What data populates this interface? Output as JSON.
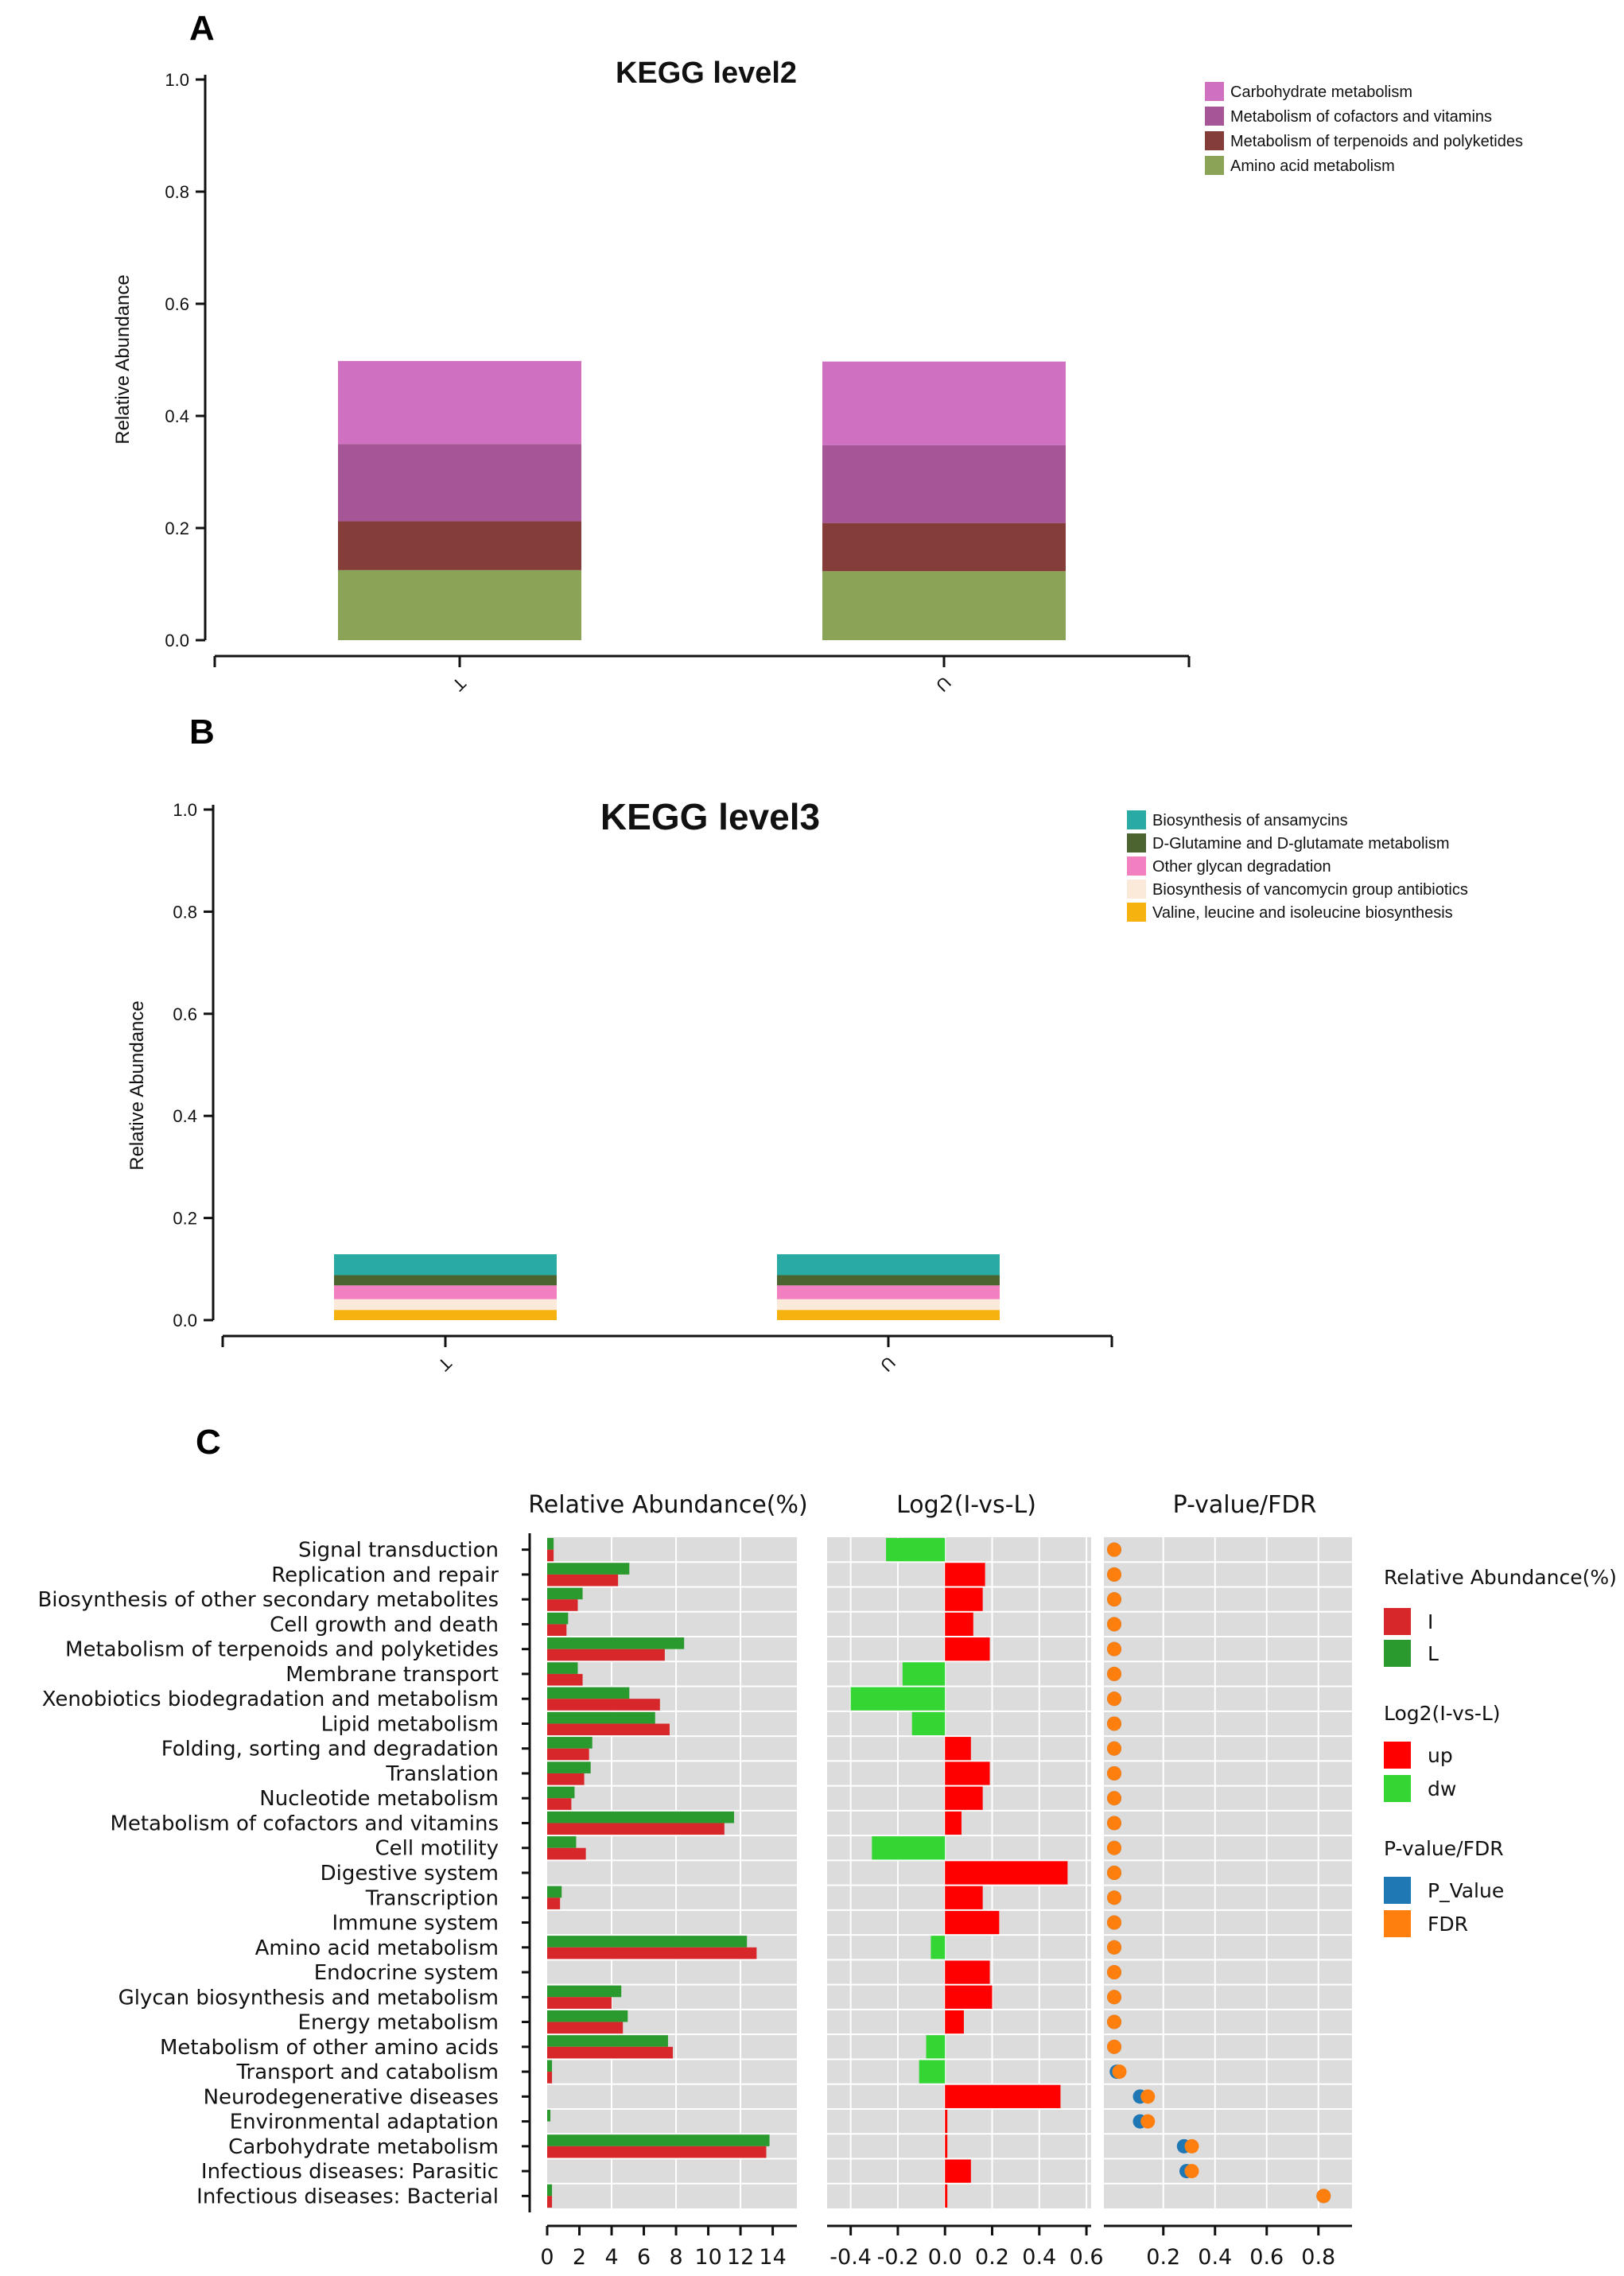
{
  "panels": {
    "a": "A",
    "b": "B",
    "c": "C"
  },
  "chart_data": [
    {
      "type": "bar",
      "stacked": true,
      "title": "KEGG level2",
      "ylabel": "Relative Abundance",
      "xlabel": "",
      "categories": [
        "T",
        "U"
      ],
      "ylim": [
        0,
        1.0
      ],
      "yticks": [
        "0.0",
        "0.2",
        "0.4",
        "0.6",
        "0.8",
        "1.0"
      ],
      "legend_position": "top-right",
      "series": [
        {
          "name": "Amino acid metabolism",
          "color": "#8ba356",
          "values": [
            0.125,
            0.123
          ]
        },
        {
          "name": "Metabolism of terpenoids and polyketides",
          "color": "#843d38",
          "values": [
            0.087,
            0.086
          ]
        },
        {
          "name": "Metabolism of cofactors and vitamins",
          "color": "#a65596",
          "values": [
            0.138,
            0.139
          ]
        },
        {
          "name": "Carbohydrate metabolism",
          "color": "#d070c1",
          "values": [
            0.148,
            0.149
          ]
        }
      ]
    },
    {
      "type": "bar",
      "stacked": true,
      "title": "KEGG level3",
      "ylabel": "Relative Abundance",
      "xlabel": "",
      "categories": [
        "T",
        "U"
      ],
      "ylim": [
        0,
        1.0
      ],
      "yticks": [
        "0.0",
        "0.2",
        "0.4",
        "0.6",
        "0.8",
        "1.0"
      ],
      "legend_position": "top-right",
      "series": [
        {
          "name": "Valine, leucine and isoleucine biosynthesis",
          "color": "#f6b20f",
          "values": [
            0.02,
            0.02
          ]
        },
        {
          "name": "Biosynthesis of vancomycin group antibiotics",
          "color": "#fbe9da",
          "values": [
            0.021,
            0.021
          ]
        },
        {
          "name": "Other glycan degradation",
          "color": "#f27fbf",
          "values": [
            0.027,
            0.027
          ]
        },
        {
          "name": "D-Glutamine and D-glutamate metabolism",
          "color": "#4c6430",
          "values": [
            0.02,
            0.02
          ]
        },
        {
          "name": "Biosynthesis of ansamycins",
          "color": "#2aaaa4",
          "values": [
            0.041,
            0.041
          ]
        }
      ]
    },
    {
      "type": "bar",
      "orientation": "horizontal",
      "subplots": {
        "abundance": {
          "header": "Relative Abundance(%)",
          "ticks": [
            "0",
            "2",
            "4",
            "6",
            "8",
            "10",
            "12",
            "14"
          ],
          "xlim": [
            0,
            15.5
          ],
          "series": [
            {
              "name": "I",
              "color": "#d8272a"
            },
            {
              "name": "L",
              "color": "#2b9a2e"
            }
          ]
        },
        "log2": {
          "header": "Log2(I-vs-L)",
          "ticks": [
            "-0.4",
            "-0.2",
            "0.0",
            "0.2",
            "0.4",
            "0.6"
          ],
          "xlim": [
            -0.5,
            0.62
          ],
          "up_color": "#ff0000",
          "dw_color": "#33d633"
        },
        "pvalue": {
          "header": "P-value/FDR",
          "ticks": [
            "0.2",
            "0.4",
            "0.6",
            "0.8"
          ],
          "xlim": [
            -0.03,
            0.93
          ],
          "p_color": "#1f77b4",
          "fdr_color": "#ff7f0e"
        }
      },
      "categories": [
        "Signal transduction",
        "Replication and repair",
        "Biosynthesis of other secondary metabolites",
        "Cell growth and death",
        "Metabolism of terpenoids and polyketides",
        "Membrane transport",
        "Xenobiotics biodegradation and metabolism",
        "Lipid metabolism",
        "Folding, sorting and degradation",
        "Translation",
        "Nucleotide metabolism",
        "Metabolism of cofactors and vitamins",
        "Cell motility",
        "Digestive system",
        "Transcription",
        "Immune system",
        "Amino acid metabolism",
        "Endocrine system",
        "Glycan biosynthesis and metabolism",
        "Energy metabolism",
        "Metabolism of other amino acids",
        "Transport and catabolism",
        "Neurodegenerative diseases",
        "Environmental adaptation",
        "Carbohydrate metabolism",
        "Infectious diseases: Parasitic",
        "Infectious diseases: Bacterial"
      ],
      "abundance_I": [
        0.4,
        4.4,
        1.9,
        1.2,
        7.3,
        2.2,
        7.0,
        7.6,
        2.6,
        2.3,
        1.5,
        11.0,
        2.4,
        0,
        0.8,
        0,
        13.0,
        0,
        4.0,
        4.7,
        7.8,
        0.3,
        0,
        0,
        13.6,
        0,
        0.3
      ],
      "abundance_L": [
        0.4,
        5.1,
        2.2,
        1.3,
        8.5,
        1.9,
        5.1,
        6.7,
        2.8,
        2.7,
        1.7,
        11.6,
        1.8,
        0,
        0.9,
        0,
        12.4,
        0,
        4.6,
        5.0,
        7.5,
        0.3,
        0,
        0.2,
        13.8,
        0,
        0.3
      ],
      "log2": [
        -0.25,
        0.17,
        0.16,
        0.12,
        0.19,
        -0.18,
        -0.4,
        -0.14,
        0.11,
        0.19,
        0.16,
        0.07,
        -0.31,
        0.52,
        0.16,
        0.23,
        -0.06,
        0.19,
        0.2,
        0.08,
        -0.08,
        -0.11,
        0.49,
        0.01,
        0.01,
        0.11,
        0.01
      ],
      "p_value": [
        0.01,
        0.01,
        0.01,
        0.01,
        0.01,
        0.01,
        0.01,
        0.01,
        0.01,
        0.01,
        0.01,
        0.01,
        0.01,
        0.01,
        0.01,
        0.01,
        0.01,
        0.01,
        0.01,
        0.01,
        0.01,
        0.02,
        0.11,
        0.11,
        0.28,
        0.29,
        0.82
      ],
      "fdr": [
        0.01,
        0.01,
        0.01,
        0.01,
        0.01,
        0.01,
        0.01,
        0.01,
        0.01,
        0.01,
        0.01,
        0.01,
        0.01,
        0.01,
        0.01,
        0.01,
        0.01,
        0.01,
        0.01,
        0.01,
        0.01,
        0.03,
        0.14,
        0.14,
        0.31,
        0.31,
        0.82
      ],
      "legend": {
        "abundance_title": "Relative Abundance(%)",
        "abundance_items": [
          "I",
          "L"
        ],
        "log2_title": "Log2(I-vs-L)",
        "log2_items": [
          "up",
          "dw"
        ],
        "pvalue_title": "P-value/FDR",
        "pvalue_items": [
          "P_Value",
          "FDR"
        ]
      }
    }
  ]
}
